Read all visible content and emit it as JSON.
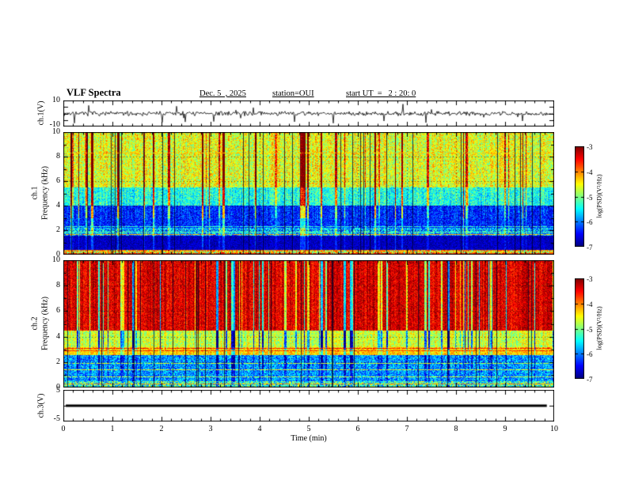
{
  "header": {
    "title": "VLF Spectra",
    "date": "Dec. 5  , 2025",
    "station": "station=OUI",
    "start_ut": "start UT  =   2 : 20: 0"
  },
  "axes": {
    "time_label": "Time (min)",
    "time_ticks": [
      "0",
      "1",
      "2",
      "3",
      "4",
      "5",
      "6",
      "7",
      "8",
      "9",
      "10"
    ],
    "freq_ticks": [
      "10",
      "8",
      "6",
      "4",
      "2",
      "0"
    ]
  },
  "panels": {
    "ch1_wave": {
      "ylabel": "ch.1(V)",
      "tick_top": "10",
      "tick_bottom": "-10"
    },
    "ch1_spec": {
      "ylabel_channel": "ch.1",
      "ylabel_freq": "Frequency (kHz)"
    },
    "ch2_spec": {
      "ylabel_channel": "ch.2",
      "ylabel_freq": "Frequency (kHz)"
    },
    "ch3_wave": {
      "ylabel": "ch.3(V)",
      "tick_top": "5",
      "tick_bottom": "-5"
    }
  },
  "colorbar": {
    "ticks": [
      "-3",
      "-4",
      "-5",
      "-6",
      "-7"
    ],
    "label": "log(PSD)(V²/Hz)"
  },
  "chart_data": [
    {
      "type": "line",
      "name": "ch1-waveform",
      "ylabel": "ch.1(V)",
      "xlabel": "Time (min)",
      "xlim": [
        0,
        10
      ],
      "ylim": [
        -10,
        10
      ],
      "baseline": 0,
      "noise_amplitude": 1.0,
      "spike_rate": 0.04,
      "spike_amplitude": 7,
      "description": "broadband noise near 0 V with sporadic impulsive spikes up to about ±8 V across the whole 10 min record"
    },
    {
      "type": "heatmap",
      "name": "ch1-spectrogram",
      "ylabel": "ch.1 Frequency (kHz)",
      "xlabel": "Time (min)",
      "xlim": [
        0,
        10
      ],
      "ylim": [
        0,
        10
      ],
      "zlim": [
        -7,
        -3
      ],
      "zlabel": "log(PSD)(V²/Hz)",
      "grid": true,
      "bands": [
        {
          "f": [
            0,
            0.45
          ],
          "level": -4.6,
          "noise": 1.1
        },
        {
          "f": [
            0.45,
            1.6
          ],
          "level": -6.75,
          "noise": 0.25
        },
        {
          "f": [
            1.6,
            2.2
          ],
          "level": -5.8,
          "noise": 0.7
        },
        {
          "f": [
            2.2,
            4.0
          ],
          "level": -6.35,
          "noise": 0.45
        },
        {
          "f": [
            4.0,
            5.5
          ],
          "level": -5.4,
          "noise": 0.5
        },
        {
          "f": [
            5.5,
            10
          ],
          "level": -4.6,
          "noise": 0.55
        }
      ],
      "hlines": [
        {
          "f": 0.12,
          "level": -3.7
        },
        {
          "f": 0.27,
          "level": -4.3
        },
        {
          "f": 0.4,
          "level": -3.9
        },
        {
          "f": 1.7,
          "level": -4.1
        },
        {
          "f": 1.9,
          "level": -5.1
        },
        {
          "f": 2.35,
          "level": -5.3
        },
        {
          "f": 8.3,
          "level": -4.3
        }
      ],
      "streaks": {
        "rate": 0.09,
        "amp": 1.7,
        "sign": 1
      },
      "gaps": 28,
      "description": "green/yellow background above ~4 kHz with frequent red vertical burst streaks; dark blue 0.5-4 kHz; red/dark horizontal striping below 0.5 kHz"
    },
    {
      "type": "heatmap",
      "name": "ch2-spectrogram",
      "ylabel": "ch.2 Frequency (kHz)",
      "xlabel": "Time (min)",
      "xlim": [
        0,
        10
      ],
      "ylim": [
        0,
        10
      ],
      "zlim": [
        -7,
        -3
      ],
      "zlabel": "log(PSD)(V²/Hz)",
      "grid": true,
      "bands": [
        {
          "f": [
            0,
            0.5
          ],
          "level": -5.3,
          "noise": 0.9
        },
        {
          "f": [
            0.5,
            2.6
          ],
          "level": -5.9,
          "noise": 0.6
        },
        {
          "f": [
            2.6,
            3.2
          ],
          "level": -4.3,
          "noise": 0.4
        },
        {
          "f": [
            3.2,
            4.5
          ],
          "level": -4.7,
          "noise": 0.45
        },
        {
          "f": [
            4.5,
            10
          ],
          "level": -3.35,
          "noise": 0.35
        }
      ],
      "hlines": [
        {
          "f": 0.3,
          "level": -4.1
        },
        {
          "f": 0.9,
          "level": -4.7
        },
        {
          "f": 1.4,
          "level": -4.5
        },
        {
          "f": 1.95,
          "level": -4.7
        },
        {
          "f": 2.95,
          "level": -3.7
        },
        {
          "f": 3.1,
          "level": -3.6
        }
      ],
      "streaks": {
        "rate": 0.1,
        "amp": 1.9,
        "sign": -1
      },
      "gaps": 24,
      "description": "saturated red/orange above ~4.5 kHz interrupted by green vertical gaps; yellow-green band near 3 kHz; cyan/blue mixed with green horizontal lines below 2.5 kHz"
    },
    {
      "type": "line",
      "name": "ch3-flat",
      "ylabel": "ch.3(V)",
      "xlabel": "Time (min)",
      "xlim": [
        0,
        10
      ],
      "ylim": [
        -5,
        5
      ],
      "baseline": 0,
      "noise_amplitude": 0,
      "spike_rate": 0,
      "spike_amplitude": 0,
      "line_width": 3,
      "x_extent": [
        0.05,
        9.85
      ],
      "description": "constant 0 V heavy flat line"
    }
  ]
}
